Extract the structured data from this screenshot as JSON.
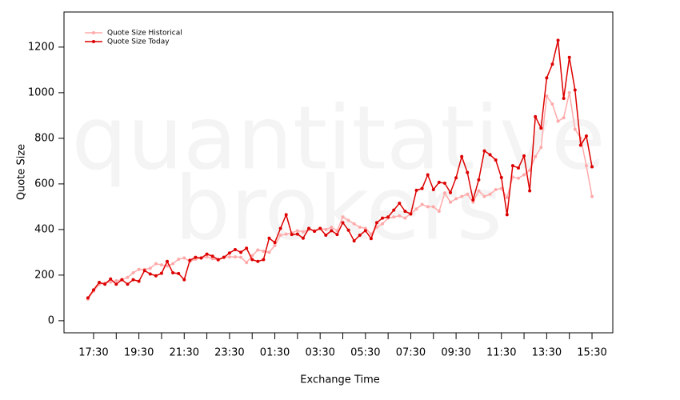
{
  "chart_data": {
    "type": "line",
    "watermark": [
      "quantitative",
      "brokers"
    ],
    "xlabel": "Exchange Time",
    "ylabel": "Quote Size",
    "categories": [
      null,
      "17:30",
      null,
      null,
      null,
      null,
      null,
      null,
      null,
      "19:30",
      null,
      null,
      null,
      null,
      null,
      null,
      null,
      "21:30",
      null,
      null,
      null,
      null,
      null,
      null,
      null,
      "23:30",
      null,
      null,
      null,
      null,
      null,
      null,
      null,
      "01:30",
      null,
      null,
      null,
      null,
      null,
      null,
      null,
      "03:30",
      null,
      null,
      null,
      null,
      null,
      null,
      null,
      "05:30",
      null,
      null,
      null,
      null,
      null,
      null,
      null,
      "07:30",
      null,
      null,
      null,
      null,
      null,
      null,
      null,
      "09:30",
      null,
      null,
      null,
      null,
      null,
      null,
      null,
      "11:30",
      null,
      null,
      null,
      null,
      null,
      null,
      null,
      "13:30",
      null,
      null,
      null,
      null,
      null,
      null,
      null,
      "15:30"
    ],
    "series": [
      {
        "name": "Quote Size Historical",
        "color": "#ffaaaa",
        "values": [
          95,
          130,
          160,
          165,
          170,
          175,
          180,
          190,
          210,
          225,
          225,
          230,
          250,
          245,
          240,
          250,
          270,
          275,
          260,
          270,
          275,
          280,
          272,
          265,
          278,
          280,
          280,
          278,
          255,
          285,
          310,
          305,
          300,
          330,
          375,
          380,
          385,
          395,
          390,
          400,
          395,
          405,
          400,
          410,
          395,
          455,
          440,
          425,
          410,
          405,
          380,
          410,
          425,
          450,
          455,
          460,
          450,
          470,
          490,
          510,
          500,
          500,
          480,
          560,
          520,
          535,
          545,
          555,
          520,
          570,
          545,
          555,
          575,
          580,
          540,
          630,
          625,
          640,
          660,
          720,
          760,
          985,
          950,
          875,
          890,
          1000,
          840,
          800,
          680,
          545
        ]
      },
      {
        "name": "Quote Size Today",
        "color": "#dd0000",
        "values": [
          100,
          135,
          168,
          160,
          183,
          160,
          180,
          160,
          180,
          173,
          220,
          205,
          197,
          208,
          260,
          210,
          207,
          180,
          265,
          278,
          275,
          292,
          283,
          268,
          278,
          297,
          312,
          300,
          318,
          268,
          260,
          268,
          362,
          343,
          405,
          465,
          378,
          380,
          362,
          405,
          392,
          405,
          375,
          395,
          378,
          430,
          397,
          350,
          375,
          395,
          360,
          430,
          450,
          455,
          485,
          515,
          480,
          468,
          572,
          580,
          640,
          575,
          607,
          603,
          562,
          627,
          720,
          650,
          530,
          618,
          745,
          728,
          705,
          628,
          465,
          680,
          670,
          723,
          570,
          895,
          845,
          1065,
          1125,
          1230,
          975,
          1155,
          1012,
          770,
          810,
          675
        ]
      }
    ],
    "ylim": [
      -53,
      1354
    ],
    "yticks": [
      0,
      200,
      400,
      600,
      800,
      1000,
      1200
    ]
  }
}
